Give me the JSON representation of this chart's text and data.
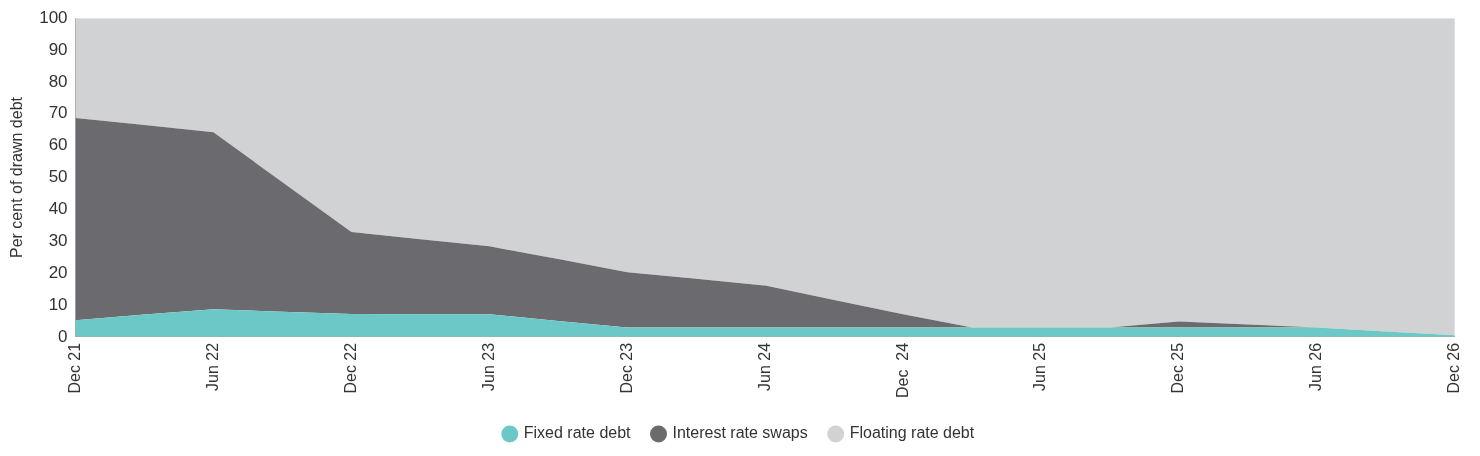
{
  "chart_data": {
    "type": "area",
    "stacked": true,
    "ylabel": "Per cent of drawn debt",
    "categories": [
      "Dec 21",
      null,
      "Jun 22",
      null,
      "Dec 22",
      null,
      "Jun 23",
      null,
      "Dec 23",
      null,
      "Jun 24",
      null,
      "Dec  24",
      null,
      "Jun 25",
      null,
      "Dec 25",
      null,
      "Jun 26",
      null,
      "Dec 26"
    ],
    "series": [
      {
        "name": "Fixed rate debt",
        "color": "#6cc8c6",
        "values": [
          5.2,
          7.0,
          8.7,
          7.9,
          7.2,
          7.1,
          7.1,
          5.0,
          2.9,
          2.9,
          2.9,
          2.9,
          2.9,
          2.9,
          2.9,
          2.9,
          2.9,
          2.9,
          2.9,
          1.7,
          0.5
        ]
      },
      {
        "name": "Interest rate swaps",
        "color": "#6b6b6f",
        "values": [
          63.5,
          59.5,
          55.5,
          40.6,
          25.7,
          23.5,
          21.3,
          19.4,
          17.4,
          15.3,
          13.2,
          8.7,
          4.2,
          0,
          0,
          0,
          1.9,
          1.0,
          0,
          0,
          0
        ]
      },
      {
        "name": "Floating rate debt",
        "color": "#d1d2d4",
        "values": [
          31.3,
          33.5,
          35.8,
          51.5,
          67.1,
          69.4,
          71.6,
          75.6,
          79.7,
          81.8,
          83.9,
          88.4,
          92.9,
          97.1,
          97.1,
          97.1,
          95.2,
          96.1,
          97.1,
          98.3,
          99.5
        ]
      }
    ],
    "ylim": [
      0,
      100
    ],
    "yticks": [
      0,
      10,
      20,
      30,
      40,
      50,
      60,
      70,
      80,
      90,
      100
    ],
    "grid": false,
    "legend": "bottom",
    "marker": "none"
  }
}
